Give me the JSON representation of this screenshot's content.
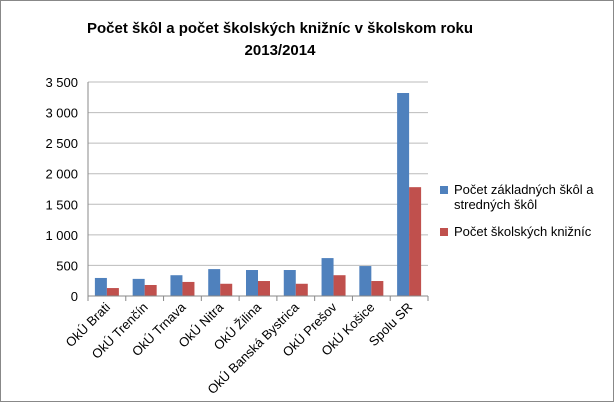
{
  "chart_data": {
    "type": "bar",
    "title": "Počet škôl a počet školských knižníc v školskom roku 2013/2014",
    "categories": [
      "OkÚ Brati",
      "OkÚ Trenčín",
      "OkÚ Trnava",
      "OkÚ Nitra",
      "OkÚ Žilina",
      "OkÚ Banská Bystrica",
      "OkÚ Prešov",
      "OkÚ Košice",
      "Spolu SR"
    ],
    "series": [
      {
        "name": "Počet základných škôl a stredných škôl",
        "color": "#4f81bd",
        "values": [
          295,
          280,
          340,
          440,
          425,
          425,
          620,
          490,
          3320
        ]
      },
      {
        "name": "Počet školských knižníc",
        "color": "#c0504d",
        "values": [
          130,
          180,
          230,
          200,
          245,
          200,
          340,
          245,
          1780
        ]
      }
    ],
    "ylim": [
      0,
      3500
    ],
    "yticks": [
      0,
      500,
      {
        "value": 1000,
        "label": "1 000"
      },
      {
        "value": 1500,
        "label": "1 500"
      },
      {
        "value": 2000,
        "label": "2 000"
      },
      {
        "value": 2500,
        "label": "2 500"
      },
      {
        "value": 3000,
        "label": "3 000"
      },
      {
        "value": 3500,
        "label": "3 500"
      }
    ],
    "grid": true
  }
}
